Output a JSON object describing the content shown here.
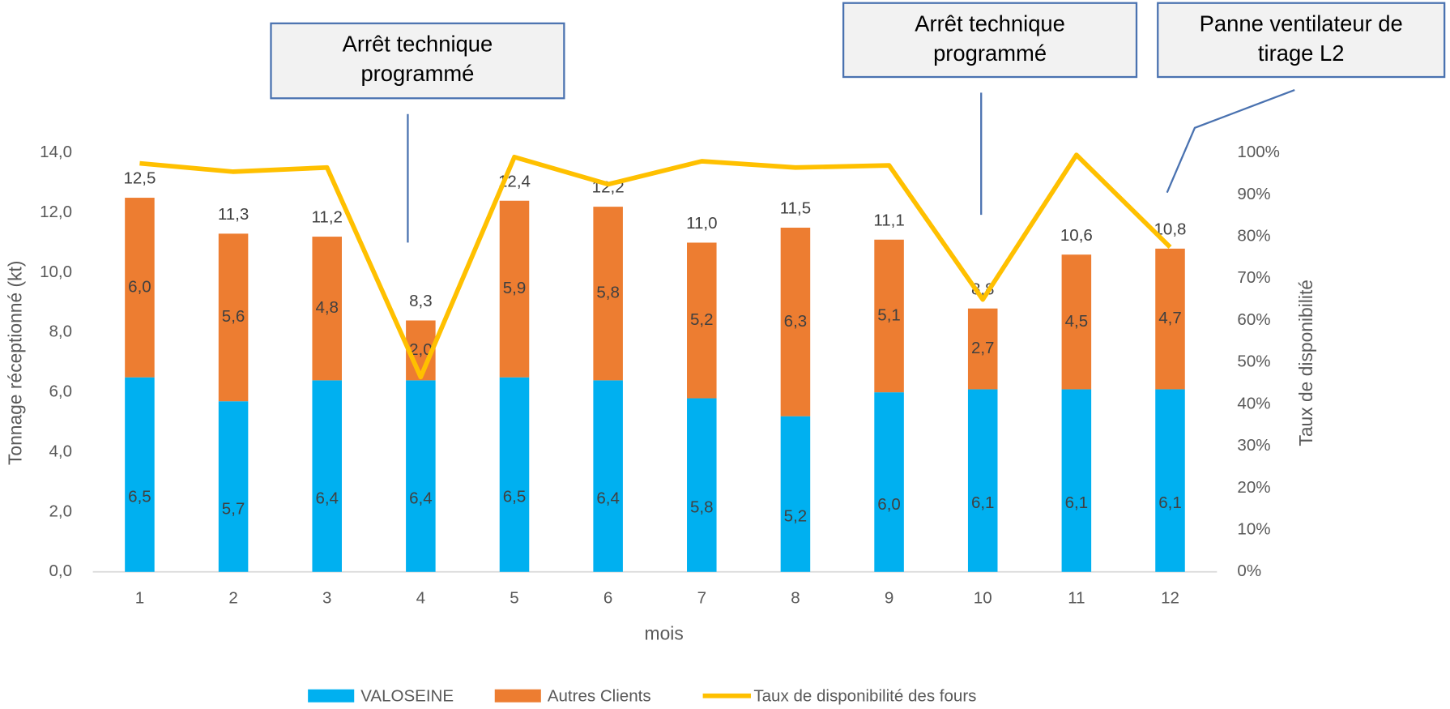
{
  "chart_data": {
    "type": "bar",
    "stacked": true,
    "categories": [
      "1",
      "2",
      "3",
      "4",
      "5",
      "6",
      "7",
      "8",
      "9",
      "10",
      "11",
      "12"
    ],
    "series": [
      {
        "name": "VALOSEINE",
        "color": "#00b0f0",
        "values": [
          6.5,
          5.7,
          6.4,
          6.4,
          6.5,
          6.4,
          5.8,
          5.2,
          6.0,
          6.1,
          6.1,
          6.1
        ],
        "value_labels": [
          "6,5",
          "5,7",
          "6,4",
          "6,4",
          "6,5",
          "6,4",
          "5,8",
          "5,2",
          "6,0",
          "6,1",
          "6,1",
          "6,1"
        ]
      },
      {
        "name": "Autres Clients",
        "color": "#ed7d31",
        "values": [
          6.0,
          5.6,
          4.8,
          2.0,
          5.9,
          5.8,
          5.2,
          6.3,
          5.1,
          2.7,
          4.5,
          4.7
        ],
        "value_labels": [
          "6,0",
          "5,6",
          "4,8",
          "2,0",
          "5,9",
          "5,8",
          "5,2",
          "6,3",
          "5,1",
          "2,7",
          "4,5",
          "4,7"
        ]
      },
      {
        "name": "Taux de disponibilité des fours",
        "type": "line",
        "axis": "y2",
        "color": "#ffc000",
        "values": [
          97.5,
          95.5,
          96.5,
          46.5,
          99,
          92.5,
          98,
          96.5,
          97,
          65,
          99.5,
          77.5
        ]
      }
    ],
    "totals": {
      "values": [
        12.5,
        11.3,
        11.2,
        8.3,
        12.4,
        12.2,
        11.0,
        11.5,
        11.1,
        8.8,
        10.6,
        10.8
      ],
      "value_labels": [
        "12,5",
        "11,3",
        "11,2",
        "8,3",
        "12,4",
        "12,2",
        "11,0",
        "11,5",
        "11,1",
        "8,8",
        "10,6",
        "10,8"
      ]
    },
    "x_label": "mois",
    "y_label": "Tonnage réceptionné (kt)",
    "y2_label": "Taux de disponibilité",
    "ylim": [
      0,
      14
    ],
    "yticks": [
      {
        "value": 0,
        "label": "0,0"
      },
      {
        "value": 2,
        "label": "2,0"
      },
      {
        "value": 4,
        "label": "4,0"
      },
      {
        "value": 6,
        "label": "6,0"
      },
      {
        "value": 8,
        "label": "8,0"
      },
      {
        "value": 10,
        "label": "10,0"
      },
      {
        "value": 12,
        "label": "12,0"
      },
      {
        "value": 14,
        "label": "14,0"
      }
    ],
    "y2lim": [
      0,
      100
    ],
    "y2ticks": [
      {
        "value": 0,
        "label": "0%"
      },
      {
        "value": 10,
        "label": "10%"
      },
      {
        "value": 20,
        "label": "20%"
      },
      {
        "value": 30,
        "label": "30%"
      },
      {
        "value": 40,
        "label": "40%"
      },
      {
        "value": 50,
        "label": "50%"
      },
      {
        "value": 60,
        "label": "60%"
      },
      {
        "value": 70,
        "label": "70%"
      },
      {
        "value": 80,
        "label": "80%"
      },
      {
        "value": 90,
        "label": "90%"
      },
      {
        "value": 100,
        "label": "100%"
      }
    ],
    "grid": false,
    "legend": "bottom",
    "annotations": [
      {
        "lines": [
          "Arrêt technique",
          "programmé"
        ]
      },
      {
        "lines": [
          "Arrêt technique",
          "programmé"
        ]
      },
      {
        "lines": [
          "Panne ventilateur de",
          "tirage L2"
        ]
      }
    ]
  }
}
